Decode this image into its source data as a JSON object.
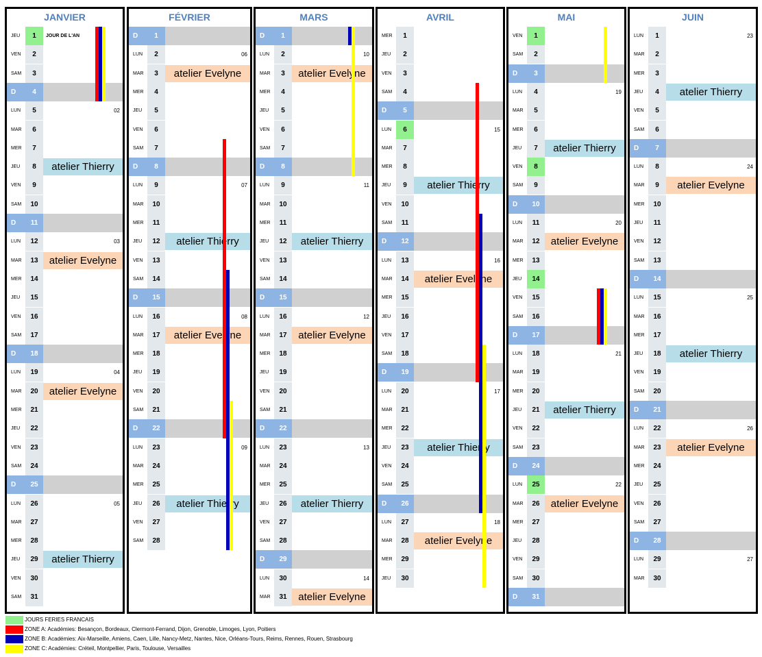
{
  "colors": {
    "zone_a": "#ff0000",
    "zone_b": "#0000b4",
    "zone_c": "#ffff00",
    "holiday": "#92f08e",
    "thierry": "#b7dde8",
    "evelyne": "#fbd5b5",
    "sunday": "#8db4e2"
  },
  "months": [
    {
      "name": "JANVIER",
      "first_weekday": 3,
      "days": 31,
      "holidays": [
        1
      ],
      "weeks": {
        "5": "02",
        "12": "03",
        "19": "04",
        "26": "05"
      },
      "labels": {
        "1": "JOUR DE L'AN"
      },
      "events": [
        {
          "day": 8,
          "who": "thierry",
          "text": "atelier Thierry"
        },
        {
          "day": 13,
          "who": "evelyne",
          "text": "atelier Evelyne"
        },
        {
          "day": 20,
          "who": "evelyne",
          "text": "atelier Evelyne"
        },
        {
          "day": 29,
          "who": "thierry",
          "text": "atelier Thierry"
        }
      ],
      "bars": [
        {
          "zone": "a",
          "from": 1,
          "to": 4
        },
        {
          "zone": "b",
          "from": 1,
          "to": 4
        },
        {
          "zone": "c",
          "from": 1,
          "to": 4
        }
      ]
    },
    {
      "name": "FÉVRIER",
      "first_weekday": 6,
      "days": 28,
      "holidays": [],
      "weeks": {
        "2": "06",
        "9": "07",
        "16": "08",
        "23": "09"
      },
      "labels": {},
      "events": [
        {
          "day": 3,
          "who": "evelyne",
          "text": "atelier Evelyne"
        },
        {
          "day": 12,
          "who": "thierry",
          "text": "atelier Thierry"
        },
        {
          "day": 17,
          "who": "evelyne",
          "text": "atelier Evelyne"
        },
        {
          "day": 26,
          "who": "thierry",
          "text": "atelier Thierry"
        }
      ],
      "bars": [
        {
          "zone": "a",
          "from": 7,
          "to": 22
        },
        {
          "zone": "b",
          "from": 14,
          "to": 28
        },
        {
          "zone": "c",
          "from": 21,
          "to": 28
        }
      ]
    },
    {
      "name": "MARS",
      "first_weekday": 6,
      "days": 31,
      "holidays": [],
      "weeks": {
        "2": "10",
        "9": "11",
        "16": "12",
        "23": "13",
        "30": "14"
      },
      "labels": {},
      "events": [
        {
          "day": 3,
          "who": "evelyne",
          "text": "atelier Evelyne"
        },
        {
          "day": 12,
          "who": "thierry",
          "text": "atelier Thierry"
        },
        {
          "day": 17,
          "who": "evelyne",
          "text": "atelier Evelyne"
        },
        {
          "day": 26,
          "who": "thierry",
          "text": "atelier Thierry"
        },
        {
          "day": 31,
          "who": "evelyne",
          "text": "atelier Evelyne"
        }
      ],
      "bars": [
        {
          "zone": "b",
          "from": 1,
          "to": 1
        },
        {
          "zone": "c",
          "from": 1,
          "to": 8
        }
      ]
    },
    {
      "name": "AVRIL",
      "first_weekday": 2,
      "days": 30,
      "holidays": [
        6
      ],
      "weeks": {
        "6": "15",
        "13": "16",
        "20": "17",
        "27": "18"
      },
      "labels": {},
      "events": [
        {
          "day": 9,
          "who": "thierry",
          "text": "atelier Thierry"
        },
        {
          "day": 14,
          "who": "evelyne",
          "text": "atelier Evelyne"
        },
        {
          "day": 23,
          "who": "thierry",
          "text": "atelier Thierry"
        },
        {
          "day": 28,
          "who": "evelyne",
          "text": "atelier Evelyne"
        }
      ],
      "bars": [
        {
          "zone": "a",
          "from": 4,
          "to": 19
        },
        {
          "zone": "b",
          "from": 11,
          "to": 26
        },
        {
          "zone": "c",
          "from": 18,
          "to": 30
        }
      ]
    },
    {
      "name": "MAI",
      "first_weekday": 4,
      "days": 31,
      "holidays": [
        1,
        8,
        14,
        25
      ],
      "weeks": {
        "4": "19",
        "11": "20",
        "18": "21",
        "25": "22"
      },
      "labels": {},
      "events": [
        {
          "day": 7,
          "who": "thierry",
          "text": "atelier Thierry"
        },
        {
          "day": 12,
          "who": "evelyne",
          "text": "atelier Evelyne"
        },
        {
          "day": 21,
          "who": "thierry",
          "text": "atelier Thierry"
        },
        {
          "day": 26,
          "who": "evelyne",
          "text": "atelier Evelyne"
        }
      ],
      "bars": [
        {
          "zone": "c",
          "from": 1,
          "to": 3
        },
        {
          "zone": "a",
          "from": 15,
          "to": 17
        },
        {
          "zone": "b",
          "from": 15,
          "to": 17
        },
        {
          "zone": "c",
          "from": 15,
          "to": 17
        }
      ]
    },
    {
      "name": "JUIN",
      "first_weekday": 0,
      "days": 30,
      "holidays": [],
      "weeks": {
        "1": "23",
        "8": "24",
        "15": "25",
        "22": "26",
        "29": "27"
      },
      "labels": {},
      "events": [
        {
          "day": 4,
          "who": "thierry",
          "text": "atelier Thierry"
        },
        {
          "day": 9,
          "who": "evelyne",
          "text": "atelier Evelyne"
        },
        {
          "day": 18,
          "who": "thierry",
          "text": "atelier Thierry"
        },
        {
          "day": 23,
          "who": "evelyne",
          "text": "atelier Evelyne"
        }
      ],
      "bars": []
    }
  ],
  "weekday_names": [
    "LUN",
    "MAR",
    "MER",
    "JEU",
    "VEN",
    "SAM",
    "D"
  ],
  "legend": [
    {
      "color": "#92f08e",
      "text": "JOURS FERIES FRANCAIS"
    },
    {
      "color": "#ff0000",
      "text": "ZONE A: Académies: Besançon, Bordeaux, Clermont-Ferrand, Dijon, Grenoble, Limoges, Lyon, Poitiers"
    },
    {
      "color": "#0000b4",
      "text": "ZONE B: Académies: Aix-Marseille, Amiens, Caen, Lille, Nancy-Metz, Nantes, Nice, Orléans-Tours, Reims, Rennes, Rouen, Strasbourg"
    },
    {
      "color": "#ffff00",
      "text": "ZONE C: Académies: Créteil, Montpellier, Paris, Toulouse, Versailles"
    }
  ]
}
